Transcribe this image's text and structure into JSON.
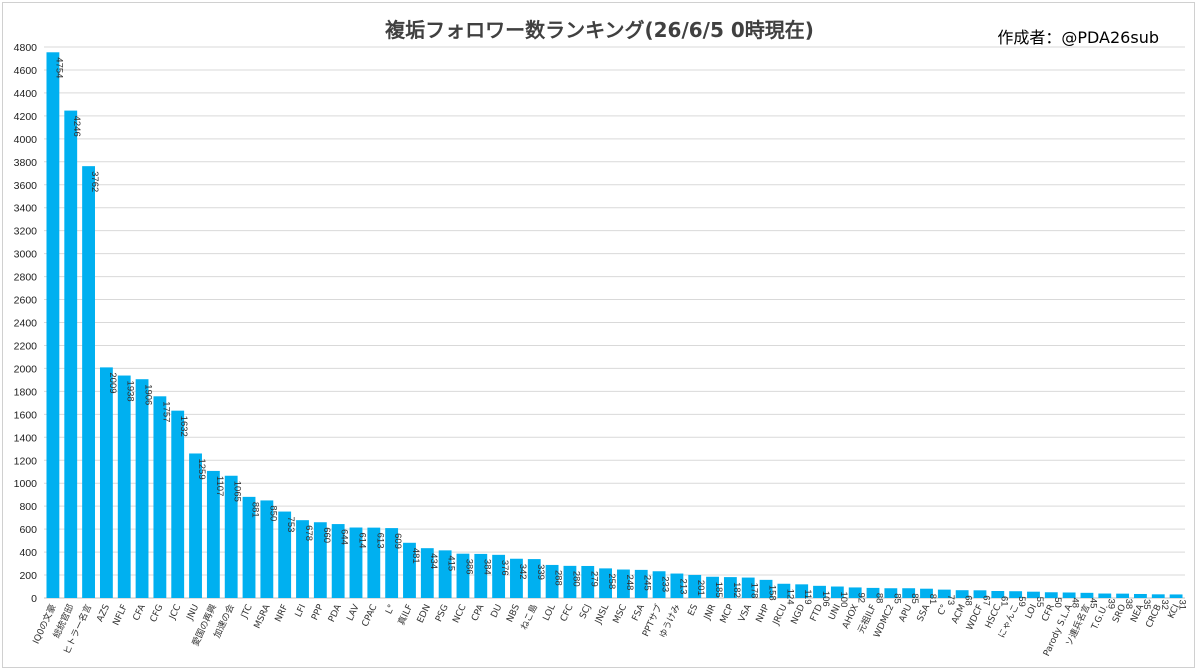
{
  "chart_data": {
    "type": "bar",
    "title": "複垢フォロワー数ランキング(26/6/5 0時現在)",
    "author": "作成者：@PDA26sub",
    "ylim": [
      0,
      4800
    ],
    "ytick_step": 200,
    "grid": true,
    "bar_color": "#00b0f0",
    "categories": [
      "IQ0の文豪",
      "総統官邸",
      "ヒトラー名言",
      "AZS",
      "NFLF",
      "CFA",
      "CFG",
      "JCC",
      "JNU",
      "愛国の再興",
      "加速の会",
      "JTC",
      "MSRA",
      "NRF",
      "LFI",
      "PPP",
      "PDA",
      "LAV",
      "CPAC",
      "L°",
      "真ILF",
      "EDN",
      "PSG",
      "NCC",
      "CPA",
      "DU",
      "NBS",
      "ねこ島",
      "LOL",
      "CFC",
      "SCJ",
      "JNSL",
      "MSC",
      "FSA",
      "PPTサブ",
      "ゆうけみ",
      "ES",
      "JNR",
      "MCP",
      "VSA",
      "NHP",
      "JRCU",
      "NGD",
      "FTD",
      "UNI",
      "AHOX",
      "元祖ILF",
      "WDMC2",
      "APU",
      "SSA",
      "C°",
      "ACM",
      "WDCF",
      "HSCC",
      "にゃんこ",
      "LOI",
      "CFR",
      "Parody S.L.A",
      "ソ連兵名言",
      "T.G.U.",
      "SRO",
      "NEA",
      "CRCB",
      "KCI"
    ],
    "values": [
      4754,
      4246,
      3762,
      2009,
      1938,
      1906,
      1757,
      1632,
      1259,
      1107,
      1065,
      881,
      850,
      753,
      678,
      660,
      644,
      614,
      613,
      609,
      481,
      434,
      415,
      386,
      384,
      376,
      342,
      339,
      288,
      280,
      279,
      258,
      248,
      245,
      233,
      213,
      201,
      185,
      182,
      178,
      158,
      124,
      119,
      106,
      100,
      92,
      88,
      85,
      85,
      81,
      73,
      68,
      67,
      61,
      59,
      55,
      50,
      48,
      45,
      39,
      38,
      35,
      32,
      31
    ]
  }
}
